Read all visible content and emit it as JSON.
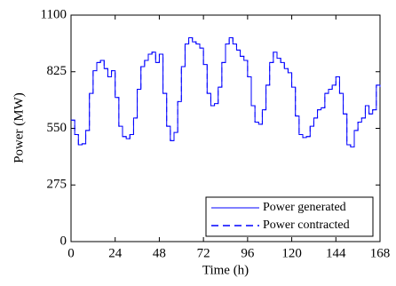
{
  "chart_data": {
    "type": "line",
    "step": true,
    "x_label": "Time (h)",
    "y_label": "Power (MW)",
    "x": [
      0,
      2,
      4,
      6,
      8,
      10,
      12,
      14,
      16,
      18,
      20,
      22,
      24,
      26,
      28,
      30,
      32,
      34,
      36,
      38,
      40,
      42,
      44,
      46,
      48,
      50,
      52,
      54,
      56,
      58,
      60,
      62,
      64,
      66,
      68,
      70,
      72,
      74,
      76,
      78,
      80,
      82,
      84,
      86,
      88,
      90,
      92,
      94,
      96,
      98,
      100,
      102,
      104,
      106,
      108,
      110,
      112,
      114,
      116,
      118,
      120,
      122,
      124,
      126,
      128,
      130,
      132,
      134,
      136,
      138,
      140,
      142,
      144,
      146,
      148,
      150,
      152,
      154,
      156,
      158,
      160,
      162,
      164,
      166,
      168
    ],
    "series": [
      {
        "name": "Power generated",
        "color": "#0000ff",
        "dash": false,
        "values": [
          590,
          520,
          470,
          475,
          540,
          720,
          830,
          870,
          880,
          840,
          800,
          830,
          700,
          560,
          510,
          500,
          520,
          600,
          740,
          850,
          880,
          910,
          920,
          870,
          910,
          720,
          560,
          490,
          530,
          680,
          850,
          960,
          990,
          970,
          960,
          940,
          860,
          720,
          660,
          670,
          750,
          870,
          960,
          990,
          960,
          930,
          900,
          880,
          800,
          660,
          580,
          570,
          640,
          760,
          870,
          920,
          890,
          870,
          840,
          820,
          750,
          610,
          520,
          505,
          510,
          560,
          600,
          640,
          650,
          720,
          740,
          760,
          800,
          720,
          620,
          470,
          460,
          540,
          580,
          600,
          660,
          620,
          640,
          760,
          750
        ]
      },
      {
        "name": "Power contracted",
        "color": "#0000ff",
        "dash": true,
        "values": [
          590,
          520,
          470,
          475,
          540,
          720,
          830,
          870,
          880,
          840,
          800,
          830,
          700,
          560,
          510,
          500,
          520,
          600,
          740,
          850,
          880,
          910,
          920,
          870,
          910,
          720,
          560,
          490,
          530,
          680,
          850,
          960,
          990,
          970,
          960,
          940,
          860,
          720,
          660,
          670,
          750,
          870,
          960,
          990,
          960,
          930,
          900,
          880,
          800,
          660,
          580,
          570,
          640,
          760,
          870,
          920,
          890,
          870,
          840,
          820,
          750,
          610,
          520,
          505,
          510,
          560,
          600,
          640,
          650,
          720,
          740,
          760,
          800,
          720,
          620,
          470,
          460,
          540,
          580,
          600,
          660,
          620,
          640,
          760,
          750
        ]
      }
    ],
    "xlim": [
      0,
      168
    ],
    "xticks": [
      0,
      24,
      48,
      72,
      96,
      120,
      144,
      168
    ],
    "ylim": [
      0,
      1100
    ],
    "yticks": [
      0,
      275,
      550,
      825,
      1100
    ],
    "legend": "lower right"
  }
}
